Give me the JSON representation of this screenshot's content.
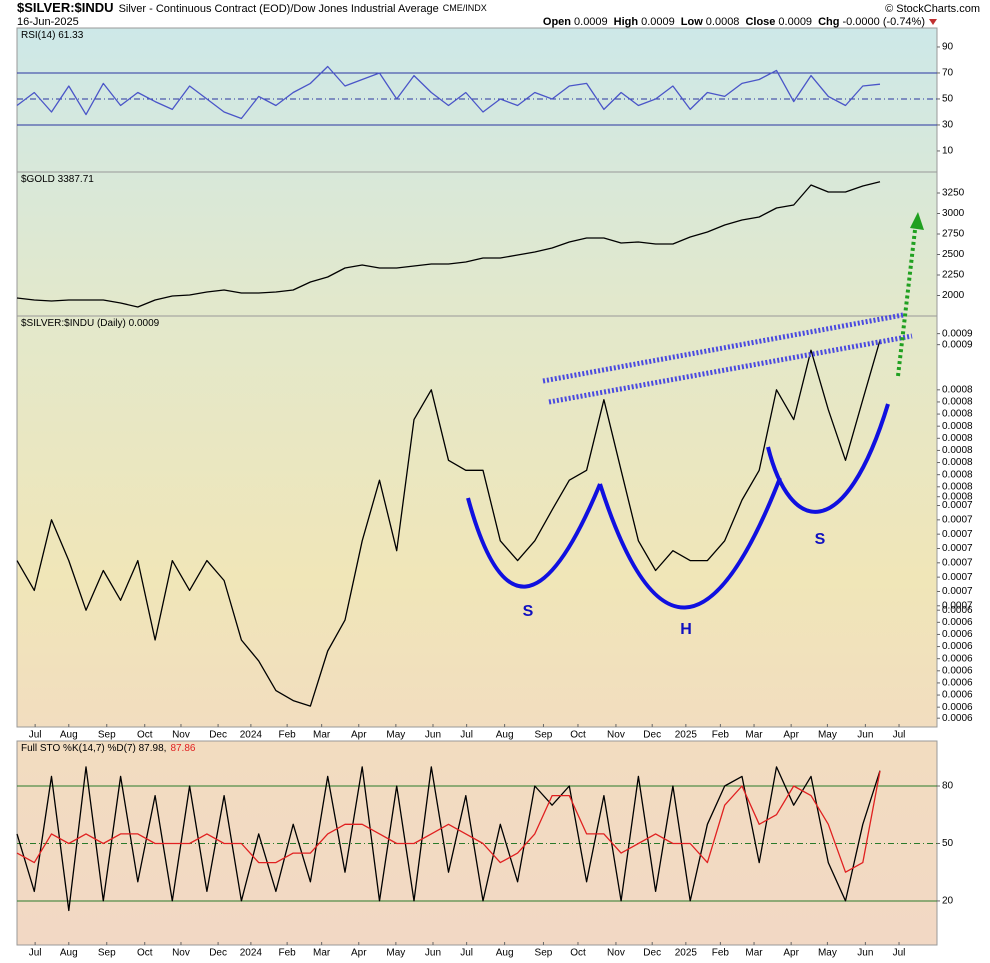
{
  "header": {
    "symbol": "$SILVER:$INDU",
    "description": "Silver - Continuous Contract (EOD)/Dow Jones Industrial Average",
    "exchange": "CME/INDX",
    "date": "16-Jun-2025",
    "quote": [
      {
        "label": "Open",
        "value": "0.0009"
      },
      {
        "label": "High",
        "value": "0.0009"
      },
      {
        "label": "Low",
        "value": "0.0008"
      },
      {
        "label": "Close",
        "value": "0.0009"
      },
      {
        "label": "Chg",
        "value": "-0.0000 (-0.74%)"
      }
    ],
    "credit": "© StockCharts.com"
  },
  "annotations": [
    "S",
    "H",
    "S"
  ],
  "chart_data": [
    {
      "type": "line",
      "label": "RSI(14) 61.33",
      "xlim": [
        0,
        53.3
      ],
      "ylim": [
        -6.2,
        104.6
      ],
      "yticks": [
        10,
        30,
        50,
        70,
        90
      ],
      "ref_lines": [
        70,
        50,
        30
      ],
      "dashed_ref": 50,
      "ref_color": "#2a35a0",
      "series": [
        {
          "name": "RSI(14)",
          "color": "#4a55c8",
          "values": [
            45,
            55,
            40,
            60,
            38,
            62,
            45,
            55,
            48,
            42,
            60,
            50,
            40,
            35,
            52,
            45,
            55,
            62,
            75,
            60,
            65,
            70,
            50,
            68,
            55,
            45,
            55,
            40,
            50,
            45,
            55,
            50,
            60,
            62,
            42,
            55,
            45,
            50,
            60,
            42,
            55,
            52,
            62,
            65,
            72,
            48,
            68,
            52,
            45,
            60,
            61.33
          ]
        }
      ]
    },
    {
      "type": "line",
      "label": "$GOLD 3387.71",
      "xlim": [
        0,
        53.3
      ],
      "ylim": [
        1750,
        3506
      ],
      "yticks": [
        2000,
        2250,
        2500,
        2750,
        3000,
        3250
      ],
      "series": [
        {
          "name": "$GOLD",
          "color": "#000000",
          "values": [
            1970,
            1945,
            1933,
            1945,
            1945,
            1945,
            1909,
            1860,
            1945,
            1994,
            2006,
            2043,
            2067,
            2030,
            2030,
            2043,
            2067,
            2165,
            2226,
            2335,
            2372,
            2335,
            2335,
            2360,
            2384,
            2384,
            2409,
            2457,
            2457,
            2494,
            2530,
            2579,
            2652,
            2701,
            2701,
            2640,
            2652,
            2628,
            2628,
            2713,
            2774,
            2860,
            2921,
            2957,
            3067,
            3104,
            3348,
            3262,
            3262,
            3335,
            3387.71
          ]
        }
      ]
    },
    {
      "type": "line",
      "label": "$SILVER:$INDU (Daily) 0.0009",
      "xlim": [
        0,
        53.3
      ],
      "ylim": [
        0.000543,
        0.000916
      ],
      "yticks": [
        {
          "value": 0.0009,
          "label": "0.0009"
        },
        {
          "value": 0.00089,
          "label": "0.0009"
        },
        {
          "value": 0.000849,
          "label": "0.0008"
        },
        {
          "value": 0.000838,
          "label": "0.0008"
        },
        {
          "value": 0.000827,
          "label": "0.0008"
        },
        {
          "value": 0.000816,
          "label": "0.0008"
        },
        {
          "value": 0.000805,
          "label": "0.0008"
        },
        {
          "value": 0.000794,
          "label": "0.0008"
        },
        {
          "value": 0.000783,
          "label": "0.0008"
        },
        {
          "value": 0.000772,
          "label": "0.0008"
        },
        {
          "value": 0.000761,
          "label": "0.0008"
        },
        {
          "value": 0.000752,
          "label": "0.0008"
        },
        {
          "value": 0.000744,
          "label": "0.0007"
        },
        {
          "value": 0.000731,
          "label": "0.0007"
        },
        {
          "value": 0.000718,
          "label": "0.0007"
        },
        {
          "value": 0.000705,
          "label": "0.0007"
        },
        {
          "value": 0.000692,
          "label": "0.0007"
        },
        {
          "value": 0.000679,
          "label": "0.0007"
        },
        {
          "value": 0.000666,
          "label": "0.0007"
        },
        {
          "value": 0.000653,
          "label": "0.0007"
        },
        {
          "value": 0.000649,
          "label": "0.0006"
        },
        {
          "value": 0.000638,
          "label": "0.0006"
        },
        {
          "value": 0.000627,
          "label": "0.0006"
        },
        {
          "value": 0.000616,
          "label": "0.0006"
        },
        {
          "value": 0.000605,
          "label": "0.0006"
        },
        {
          "value": 0.000594,
          "label": "0.0006"
        },
        {
          "value": 0.000583,
          "label": "0.0006"
        },
        {
          "value": 0.000572,
          "label": "0.0006"
        },
        {
          "value": 0.000561,
          "label": "0.0006"
        },
        {
          "value": 0.000551,
          "label": "0.0006"
        }
      ],
      "xticks": [
        {
          "value": 1.05,
          "label": "Jul"
        },
        {
          "value": 3.0,
          "label": "Aug"
        },
        {
          "value": 5.2,
          "label": "Sep"
        },
        {
          "value": 7.4,
          "label": "Oct"
        },
        {
          "value": 9.5,
          "label": "Nov"
        },
        {
          "value": 11.65,
          "label": "Dec"
        },
        {
          "value": 13.55,
          "label": "2024"
        },
        {
          "value": 15.65,
          "label": "Feb"
        },
        {
          "value": 17.65,
          "label": "Mar"
        },
        {
          "value": 19.8,
          "label": "Apr"
        },
        {
          "value": 21.95,
          "label": "May"
        },
        {
          "value": 24.1,
          "label": "Jun"
        },
        {
          "value": 26.05,
          "label": "Jul"
        },
        {
          "value": 28.25,
          "label": "Aug"
        },
        {
          "value": 30.5,
          "label": "Sep"
        },
        {
          "value": 32.5,
          "label": "Oct"
        },
        {
          "value": 34.7,
          "label": "Nov"
        },
        {
          "value": 36.8,
          "label": "Dec"
        },
        {
          "value": 38.75,
          "label": "2025"
        },
        {
          "value": 40.75,
          "label": "Feb"
        },
        {
          "value": 42.7,
          "label": "Mar"
        },
        {
          "value": 44.85,
          "label": "Apr"
        },
        {
          "value": 46.95,
          "label": "May"
        },
        {
          "value": 49.15,
          "label": "Jun"
        },
        {
          "value": 51.1,
          "label": "Jul"
        }
      ],
      "series": [
        {
          "name": "$SILVER:$INDU",
          "color": "#000000",
          "values": [
            0.000694,
            0.000667,
            0.000731,
            0.000694,
            0.000649,
            0.000685,
            0.000658,
            0.000694,
            0.000622,
            0.000694,
            0.000667,
            0.000694,
            0.000676,
            0.000622,
            0.000603,
            0.000576,
            0.000567,
            0.000562,
            0.000612,
            0.00064,
            0.000712,
            0.000767,
            0.000703,
            0.000822,
            0.000849,
            0.000785,
            0.000776,
            0.000776,
            0.000712,
            0.000694,
            0.000712,
            0.00074,
            0.000767,
            0.000776,
            0.00084,
            0.000776,
            0.000712,
            0.000685,
            0.000703,
            0.000694,
            0.000694,
            0.000712,
            0.000749,
            0.000776,
            0.000849,
            0.000822,
            0.000885,
            0.000831,
            0.000785,
            0.00084,
            0.000894
          ]
        }
      ]
    },
    {
      "type": "line",
      "label": "Full STO %K(14,7) %D(7) 87.98,",
      "label2": "87.86",
      "xlim": [
        0,
        53.3
      ],
      "ylim": [
        -3,
        103.5
      ],
      "yticks": [
        20,
        50,
        80
      ],
      "ref_lines": [
        80,
        50,
        20
      ],
      "dashed_ref": 50,
      "ref_color": "#2a7a2a",
      "xticks": [
        {
          "value": 1.05,
          "label": "Jul"
        },
        {
          "value": 3.0,
          "label": "Aug"
        },
        {
          "value": 5.2,
          "label": "Sep"
        },
        {
          "value": 7.4,
          "label": "Oct"
        },
        {
          "value": 9.5,
          "label": "Nov"
        },
        {
          "value": 11.65,
          "label": "Dec"
        },
        {
          "value": 13.55,
          "label": "2024"
        },
        {
          "value": 15.65,
          "label": "Feb"
        },
        {
          "value": 17.65,
          "label": "Mar"
        },
        {
          "value": 19.8,
          "label": "Apr"
        },
        {
          "value": 21.95,
          "label": "May"
        },
        {
          "value": 24.1,
          "label": "Jun"
        },
        {
          "value": 26.05,
          "label": "Jul"
        },
        {
          "value": 28.25,
          "label": "Aug"
        },
        {
          "value": 30.5,
          "label": "Sep"
        },
        {
          "value": 32.5,
          "label": "Oct"
        },
        {
          "value": 34.7,
          "label": "Nov"
        },
        {
          "value": 36.8,
          "label": "Dec"
        },
        {
          "value": 38.75,
          "label": "2025"
        },
        {
          "value": 40.75,
          "label": "Feb"
        },
        {
          "value": 42.7,
          "label": "Mar"
        },
        {
          "value": 44.85,
          "label": "Apr"
        },
        {
          "value": 46.95,
          "label": "May"
        },
        {
          "value": 49.15,
          "label": "Jun"
        },
        {
          "value": 51.1,
          "label": "Jul"
        }
      ],
      "series": [
        {
          "name": "%K",
          "color": "#000000",
          "values": [
            55,
            25,
            85,
            15,
            90,
            20,
            85,
            30,
            75,
            20,
            80,
            25,
            75,
            20,
            55,
            25,
            60,
            30,
            85,
            35,
            90,
            20,
            80,
            20,
            90,
            35,
            75,
            20,
            60,
            30,
            80,
            70,
            80,
            30,
            75,
            20,
            85,
            25,
            80,
            20,
            60,
            80,
            85,
            40,
            90,
            70,
            85,
            40,
            20,
            60,
            87.98
          ]
        },
        {
          "name": "%D",
          "color": "#e02020",
          "values": [
            45,
            40,
            55,
            50,
            55,
            50,
            55,
            55,
            50,
            50,
            50,
            55,
            50,
            50,
            40,
            40,
            45,
            45,
            55,
            60,
            60,
            55,
            50,
            50,
            55,
            60,
            55,
            50,
            40,
            45,
            55,
            75,
            75,
            55,
            55,
            45,
            50,
            55,
            50,
            50,
            40,
            70,
            80,
            60,
            65,
            80,
            75,
            60,
            35,
            40,
            87.86
          ]
        }
      ]
    }
  ]
}
